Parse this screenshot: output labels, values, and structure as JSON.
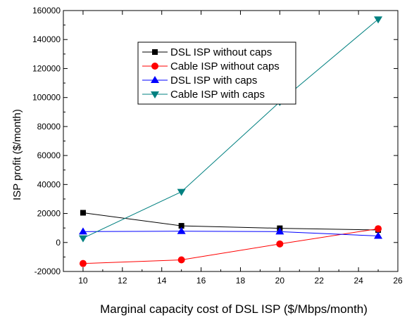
{
  "chart_data": {
    "type": "line",
    "title": "",
    "xlabel": "Marginal capacity cost of DSL ISP ($/Mbps/month)",
    "ylabel": "ISP profit ($/month)",
    "xlim": [
      9,
      26
    ],
    "ylim": [
      -20000,
      160000
    ],
    "xticks": [
      10,
      12,
      14,
      16,
      18,
      20,
      22,
      24,
      26
    ],
    "yticks": [
      -20000,
      0,
      20000,
      40000,
      60000,
      80000,
      100000,
      120000,
      140000,
      160000
    ],
    "grid": false,
    "legend_position": "upper-center",
    "series": [
      {
        "name": "DSL ISP without caps",
        "color": "#000000",
        "marker": "square",
        "x": [
          10,
          15,
          20,
          25
        ],
        "y": [
          20500,
          11500,
          9800,
          8600
        ]
      },
      {
        "name": "Cable ISP without caps",
        "color": "#ff0000",
        "marker": "circle",
        "x": [
          10,
          15,
          20,
          25
        ],
        "y": [
          -14500,
          -12000,
          -1000,
          9500
        ]
      },
      {
        "name": "DSL ISP with caps",
        "color": "#0000ff",
        "marker": "triangle-up",
        "x": [
          10,
          15,
          20,
          25
        ],
        "y": [
          7500,
          7800,
          7500,
          4500
        ]
      },
      {
        "name": "Cable ISP with caps",
        "color": "#008080",
        "marker": "triangle-down",
        "x": [
          10,
          15,
          20,
          25
        ],
        "y": [
          3000,
          35000,
          97000,
          154000
        ]
      }
    ]
  }
}
